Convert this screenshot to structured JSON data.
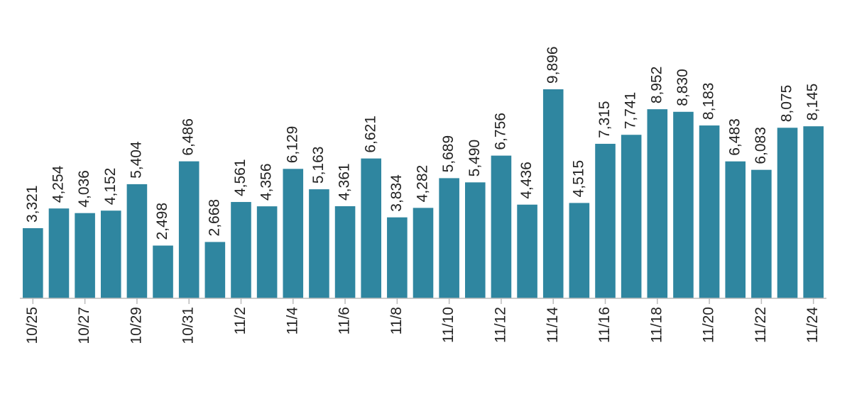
{
  "chart_data": {
    "type": "bar",
    "categories": [
      "10/25",
      null,
      "10/27",
      null,
      "10/29",
      null,
      "10/31",
      null,
      "11/2",
      null,
      "11/4",
      null,
      "11/6",
      null,
      "11/8",
      null,
      "11/10",
      null,
      "11/12",
      null,
      "11/14",
      null,
      "11/16",
      null,
      "11/18",
      null,
      "11/20",
      null,
      "11/22",
      null,
      "11/24"
    ],
    "values": [
      3321,
      4254,
      4036,
      4152,
      5404,
      2498,
      6486,
      2668,
      4561,
      4356,
      6129,
      5163,
      4361,
      6621,
      3834,
      4282,
      5689,
      5490,
      6756,
      4436,
      9896,
      4515,
      7315,
      7741,
      8952,
      8830,
      8183,
      6483,
      6083,
      8075,
      8145
    ],
    "value_labels": [
      "3,321",
      "4,254",
      "4,036",
      "4,152",
      "5,404",
      "2,498",
      "6,486",
      "2,668",
      "4,561",
      "4,356",
      "6,129",
      "5,163",
      "4,361",
      "6,621",
      "3,834",
      "4,282",
      "5,689",
      "5,490",
      "6,756",
      "4,436",
      "9,896",
      "4,515",
      "7,315",
      "7,741",
      "8,952",
      "8,830",
      "8,183",
      "6,483",
      "6,083",
      "8,075",
      "8,145"
    ],
    "color": "#2f86a0"
  }
}
